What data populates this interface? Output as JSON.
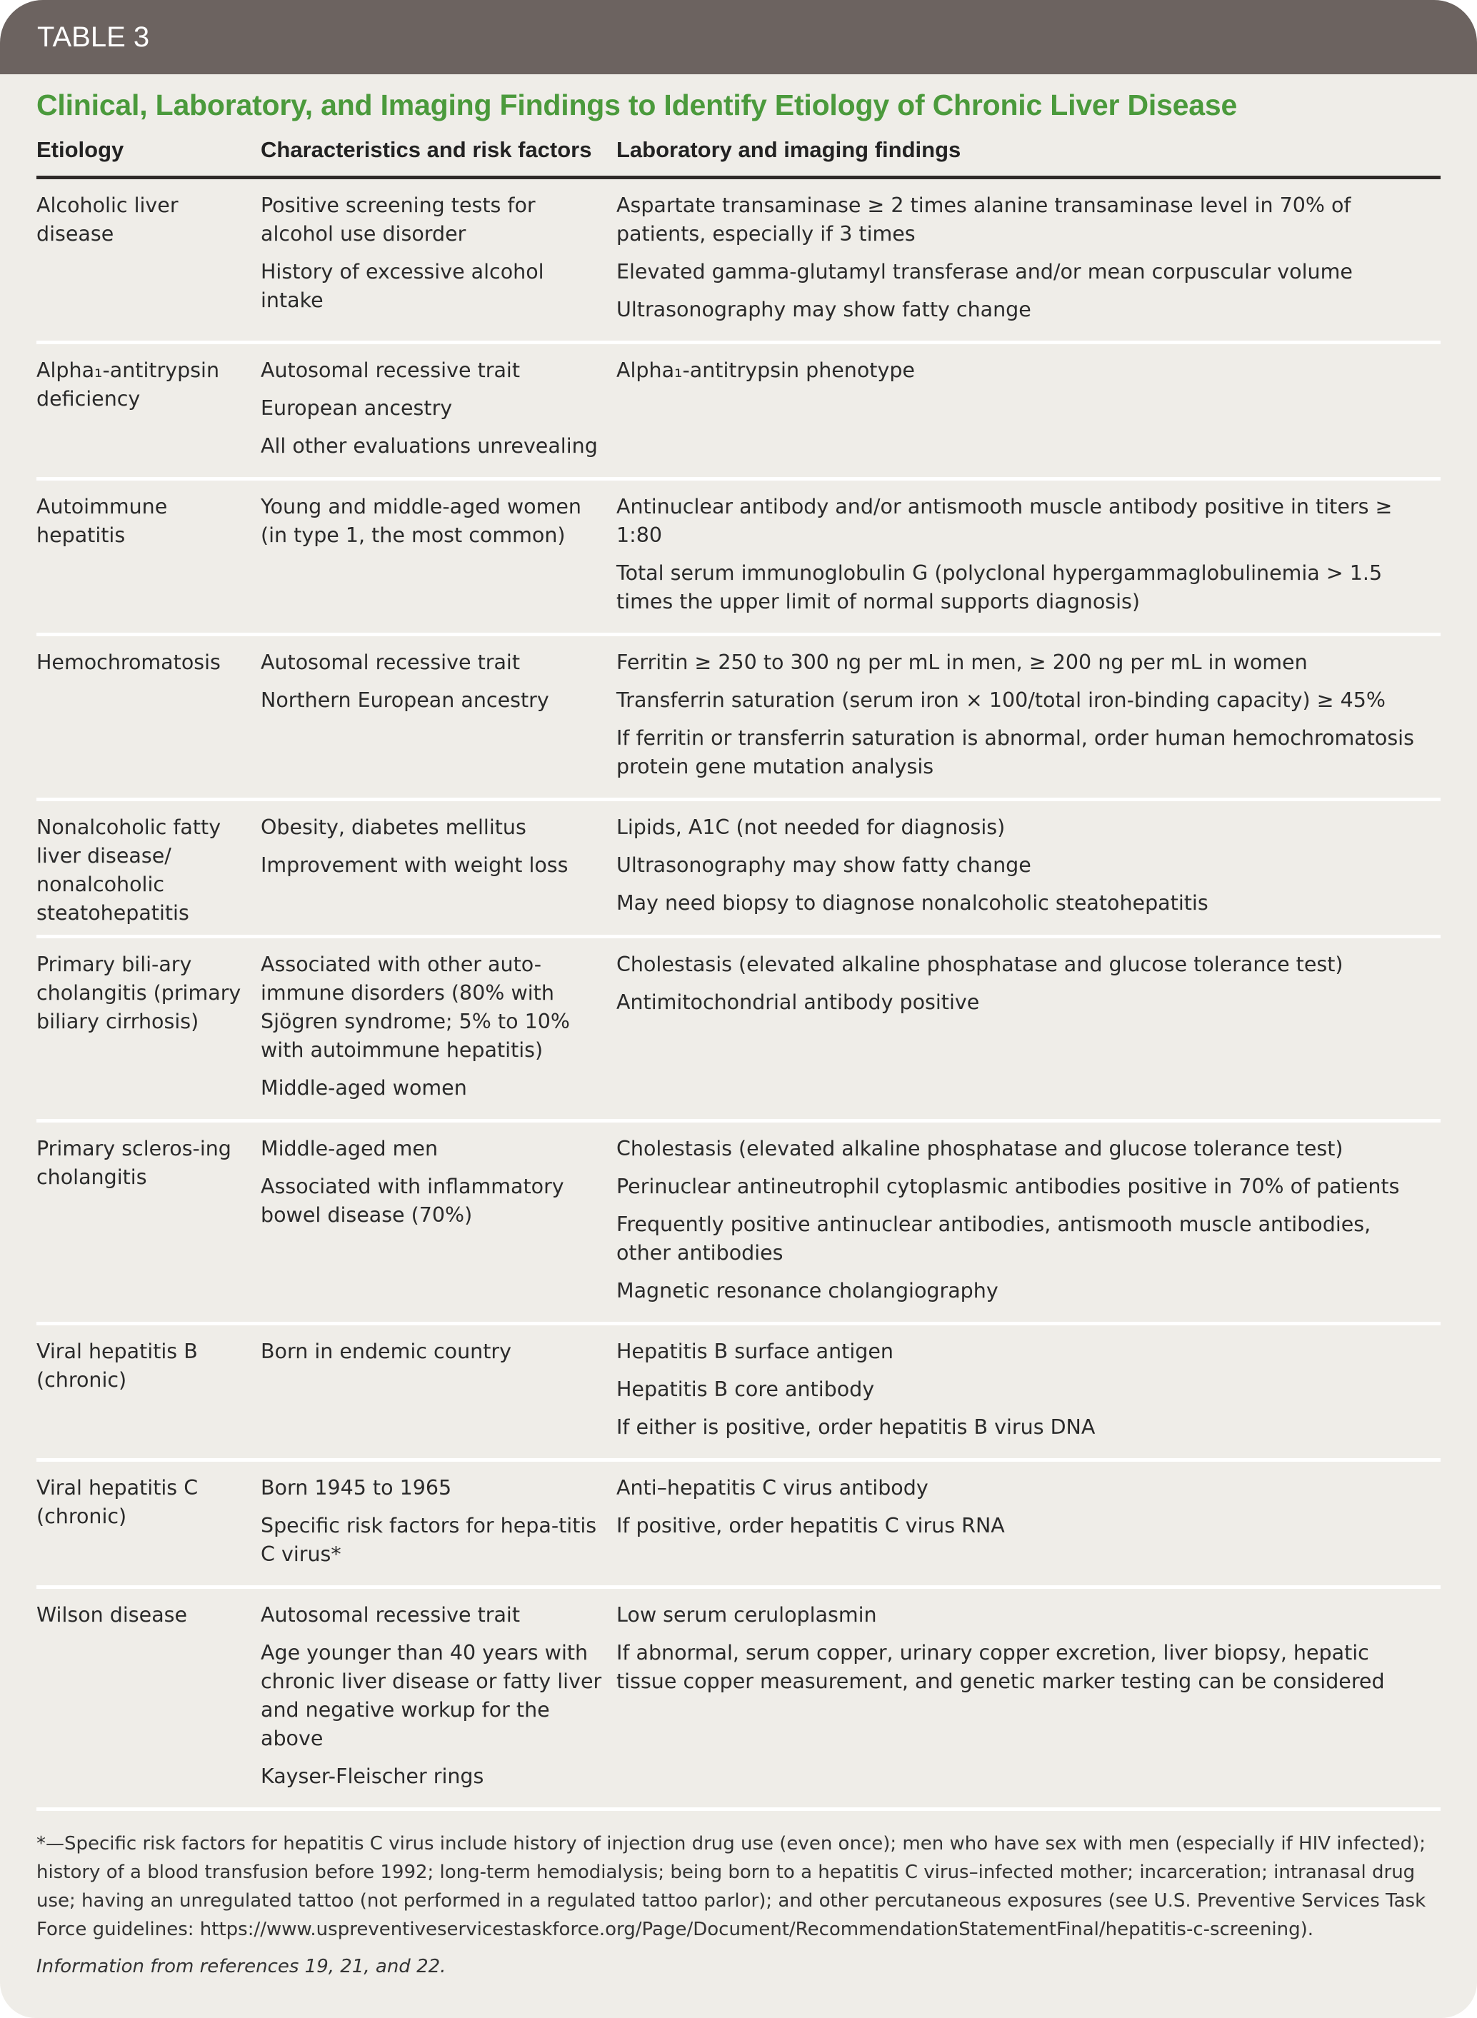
{
  "header": {
    "label": "TABLE 3"
  },
  "title": "Clinical, Laboratory, and Imaging Findings to Identify Etiology of Chronic Liver Disease",
  "columns": [
    "Etiology",
    "Characteristics and risk factors",
    "Laboratory and imaging findings"
  ],
  "rows": [
    {
      "etiology": "Alcoholic liver disease",
      "characteristics": [
        "Positive screening tests for alcohol use disorder",
        "History of excessive alcohol intake"
      ],
      "findings": [
        "Aspartate transaminase ≥ 2 times alanine transaminase level in 70% of patients, especially if 3 times",
        "Elevated gamma-glutamyl transferase and/or mean corpuscular volume",
        "Ultrasonography may show fatty change"
      ]
    },
    {
      "etiology": "Alpha₁-antitrypsin deficiency",
      "characteristics": [
        "Autosomal recessive trait",
        "European ancestry",
        "All other evaluations unrevealing"
      ],
      "findings": [
        "Alpha₁-antitrypsin phenotype"
      ]
    },
    {
      "etiology": "Autoimmune hepatitis",
      "characteristics": [
        "Young and middle-aged women (in type 1, the most common)"
      ],
      "findings": [
        "Antinuclear antibody and/or antismooth muscle antibody positive in titers ≥ 1:80",
        "Total serum immunoglobulin G (polyclonal hypergammaglobulinemia > 1.5 times the upper limit of normal supports diagnosis)"
      ]
    },
    {
      "etiology": "Hemochromatosis",
      "characteristics": [
        "Autosomal recessive trait",
        "Northern European ancestry"
      ],
      "findings": [
        "Ferritin ≥ 250 to 300 ng per mL in men, ≥ 200 ng per mL in women",
        "Transferrin saturation (serum iron × 100/total iron-binding capacity) ≥ 45%",
        "If ferritin or transferrin saturation is abnormal, order human hemochromatosis protein gene mutation analysis"
      ]
    },
    {
      "etiology": "Nonalcoholic fatty liver disease/ nonalcoholic steatohepatitis",
      "characteristics": [
        "Obesity, diabetes mellitus",
        "Improvement with weight loss"
      ],
      "findings": [
        "Lipids, A1C (not needed for diagnosis)",
        "Ultrasonography may show fatty change",
        "May need biopsy to diagnose nonalcoholic steatohepatitis"
      ]
    },
    {
      "etiology": "Primary bili-ary cholangitis (primary biliary cirrhosis)",
      "characteristics": [
        "Associated with other auto-immune disorders (80% with Sjögren syndrome; 5% to 10% with autoimmune hepatitis)",
        "Middle-aged women"
      ],
      "findings": [
        "Cholestasis (elevated alkaline phosphatase and glucose tolerance test)",
        "Antimitochondrial antibody positive"
      ]
    },
    {
      "etiology": "Primary scleros-ing cholangitis",
      "characteristics": [
        "Middle-aged men",
        "Associated with inflammatory bowel disease (70%)"
      ],
      "findings": [
        "Cholestasis (elevated alkaline phosphatase and glucose tolerance test)",
        "Perinuclear antineutrophil cytoplasmic antibodies positive in 70% of patients",
        "Frequently positive antinuclear antibodies, antismooth muscle antibodies, other antibodies",
        "Magnetic resonance cholangiography"
      ]
    },
    {
      "etiology": "Viral hepatitis B (chronic)",
      "characteristics": [
        "Born in endemic country"
      ],
      "findings": [
        "Hepatitis B surface antigen",
        "Hepatitis B core antibody",
        "If either is positive, order hepatitis B virus DNA"
      ]
    },
    {
      "etiology": "Viral hepatitis C (chronic)",
      "characteristics": [
        "Born 1945 to 1965",
        "Specific risk factors for hepa-titis C virus*"
      ],
      "findings": [
        "Anti–hepatitis C virus antibody",
        "If positive, order hepatitis C virus RNA"
      ]
    },
    {
      "etiology": "Wilson disease",
      "characteristics": [
        "Autosomal recessive trait",
        "Age younger than 40 years with chronic liver disease or fatty liver and negative workup for the above",
        "Kayser-Fleischer rings"
      ],
      "findings": [
        "Low serum ceruloplasmin",
        "If abnormal, serum copper, urinary copper excretion, liver biopsy, hepatic tissue copper measurement, and genetic marker testing can be considered"
      ]
    }
  ],
  "footnote": "*—Specific risk factors for hepatitis C virus include history of injection drug use (even once); men who have sex with men (especially if HIV infected); history of a blood transfusion before 1992; long-term hemodialysis; being born to a hepatitis C virus–infected mother; incarceration; intranasal drug use; having an unregulated tattoo (not performed in a regulated tattoo parlor); and other percutaneous exposures (see U.S. Preventive Services Task Force guidelines: https://www.uspreventiveservicestaskforce.org/Page/Document/RecommendationStatementFinal/hepatitis-c-screening).",
  "source": "Information from references 19, 21, and 22.",
  "colors": {
    "header_bar": "#6c6360",
    "title": "#4b9a3c",
    "background": "#efede8"
  }
}
